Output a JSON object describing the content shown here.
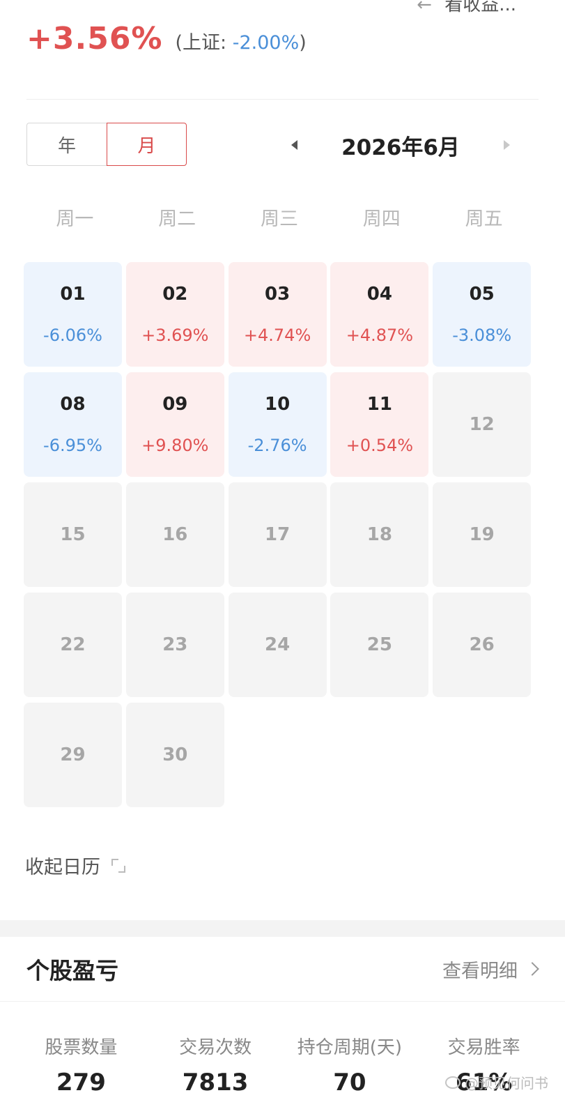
{
  "header": {
    "cut_title": "看收益...",
    "return_pct": "+3.56%",
    "benchmark_label": "(上证:",
    "benchmark_value": "-2.00%",
    "benchmark_close": ")"
  },
  "view_toggle": {
    "year_label": "年",
    "month_label": "月",
    "active": "月"
  },
  "month_nav": {
    "current": "2026年6月"
  },
  "weekdays": [
    "周一",
    "周二",
    "周三",
    "周四",
    "周五"
  ],
  "calendar": {
    "rows": [
      [
        {
          "day": "01",
          "change": "-6.06%",
          "type": "neg"
        },
        {
          "day": "02",
          "change": "+3.69%",
          "type": "pos"
        },
        {
          "day": "03",
          "change": "+4.74%",
          "type": "pos"
        },
        {
          "day": "04",
          "change": "+4.87%",
          "type": "pos"
        },
        {
          "day": "05",
          "change": "-3.08%",
          "type": "neg"
        }
      ],
      [
        {
          "day": "08",
          "change": "-6.95%",
          "type": "neg"
        },
        {
          "day": "09",
          "change": "+9.80%",
          "type": "pos"
        },
        {
          "day": "10",
          "change": "-2.76%",
          "type": "neg"
        },
        {
          "day": "11",
          "change": "+0.54%",
          "type": "pos"
        },
        {
          "day": "12",
          "change": "",
          "type": "empty"
        }
      ],
      [
        {
          "day": "15",
          "change": "",
          "type": "empty"
        },
        {
          "day": "16",
          "change": "",
          "type": "empty"
        },
        {
          "day": "17",
          "change": "",
          "type": "empty"
        },
        {
          "day": "18",
          "change": "",
          "type": "empty"
        },
        {
          "day": "19",
          "change": "",
          "type": "empty"
        }
      ],
      [
        {
          "day": "22",
          "change": "",
          "type": "empty"
        },
        {
          "day": "23",
          "change": "",
          "type": "empty"
        },
        {
          "day": "24",
          "change": "",
          "type": "empty"
        },
        {
          "day": "25",
          "change": "",
          "type": "empty"
        },
        {
          "day": "26",
          "change": "",
          "type": "empty"
        }
      ],
      [
        {
          "day": "29",
          "change": "",
          "type": "empty"
        },
        {
          "day": "30",
          "change": "",
          "type": "empty"
        },
        {
          "day": "",
          "change": "",
          "type": "blank"
        },
        {
          "day": "",
          "change": "",
          "type": "blank"
        },
        {
          "day": "",
          "change": "",
          "type": "blank"
        }
      ]
    ]
  },
  "collapse": {
    "label": "收起日历",
    "icon": "collapse-icon"
  },
  "stock_section": {
    "title": "个股盈亏",
    "detail_link": "查看明细"
  },
  "stats": [
    {
      "label": "股票数量",
      "value": "279"
    },
    {
      "label": "交易次数",
      "value": "7813"
    },
    {
      "label": "持仓周期(天)",
      "value": "70"
    },
    {
      "label": "交易胜率",
      "value": "61%"
    }
  ],
  "watermark": "@预见何问书",
  "colors": {
    "positive": "#e05252",
    "negative": "#4a8fd8",
    "positive_bg": "#fdeeee",
    "negative_bg": "#edf4fd"
  }
}
